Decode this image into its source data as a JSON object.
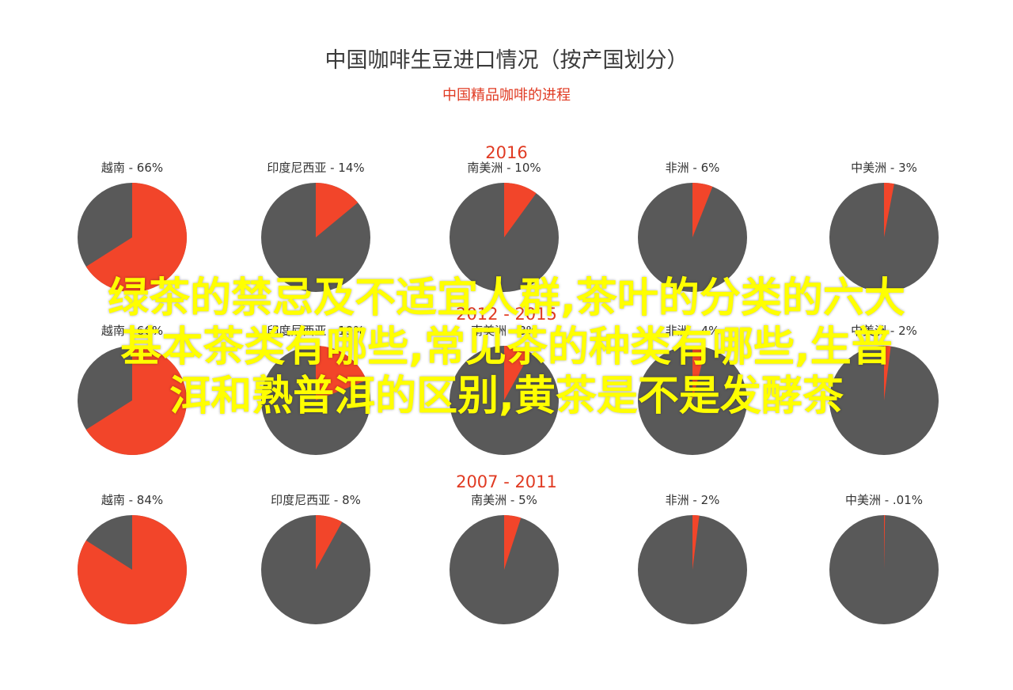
{
  "title": "中国咖啡生豆进口情况（按产国划分）",
  "subtitle": "中国精品咖啡的进程",
  "colors": {
    "share": "#f2452a",
    "rest": "#595959",
    "year": "#e03a22",
    "label": "#333333",
    "overlay": "#ffff00"
  },
  "overlay_text": [
    "绿茶的禁忌及不适宜人群,茶叶的分类的六大",
    "基本茶类有哪些,常见茶的种类有哪些,生普",
    "洱和熟普洱的区别,黄茶是不是发酵茶"
  ],
  "chart_data": [
    {
      "type": "pie",
      "period": "2016",
      "series": [
        {
          "name": "越南",
          "label": "越南 - 66%",
          "share": 66
        },
        {
          "name": "印度尼西亚",
          "label": "印度尼西亚 - 14%",
          "share": 14
        },
        {
          "name": "南美洲",
          "label": "南美洲 - 10%",
          "share": 10
        },
        {
          "name": "非洲",
          "label": "非洲 - 6%",
          "share": 6
        },
        {
          "name": "中美洲",
          "label": "中美洲 - 3%",
          "share": 3
        }
      ]
    },
    {
      "type": "pie",
      "period": "2012 - 2015",
      "series": [
        {
          "name": "越南",
          "label": "越南 - 66%",
          "share": 66
        },
        {
          "name": "印度尼西亚",
          "label": "印度尼西亚 - 19%",
          "share": 19
        },
        {
          "name": "南美洲",
          "label": "南美洲 - 8%",
          "share": 8
        },
        {
          "name": "非洲",
          "label": "非洲 - 4%",
          "share": 4
        },
        {
          "name": "中美洲",
          "label": "中美洲 - 2%",
          "share": 2
        }
      ]
    },
    {
      "type": "pie",
      "period": "2007 - 2011",
      "series": [
        {
          "name": "越南",
          "label": "越南 - 84%",
          "share": 84
        },
        {
          "name": "印度尼西亚",
          "label": "印度尼西亚 - 8%",
          "share": 8
        },
        {
          "name": "南美洲",
          "label": "南美洲 - 5%",
          "share": 5
        },
        {
          "name": "非洲",
          "label": "非洲 - 2%",
          "share": 2
        },
        {
          "name": "中美洲",
          "label": "中美洲 - .01%",
          "share": 0.01
        }
      ]
    }
  ]
}
